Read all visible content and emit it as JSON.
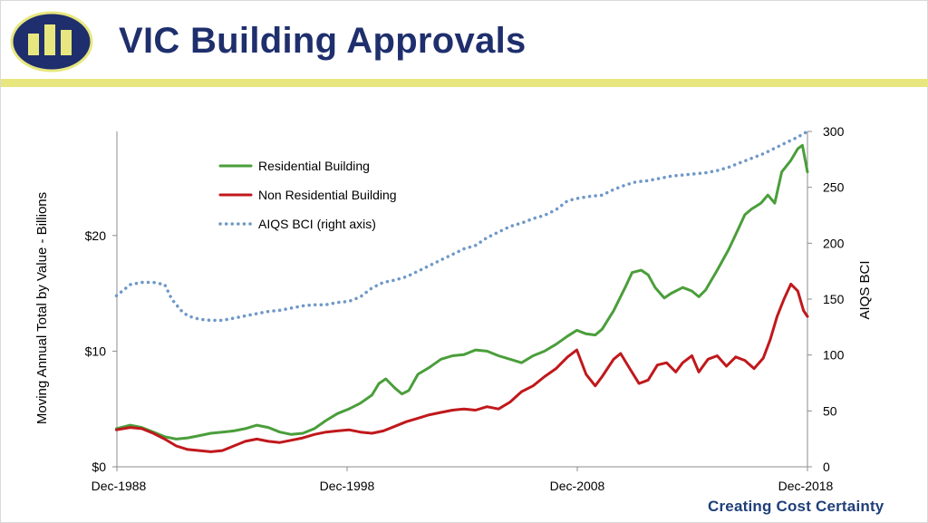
{
  "header": {
    "title": "VIC Building Approvals",
    "tagline": "Creating Cost Certainty"
  },
  "colors": {
    "title": "#1f2f6d",
    "accent_bar": "#e8e77f",
    "logo_fill": "#1f2f6d",
    "logo_mark": "#e8e77f",
    "residential": "#4a9e3a",
    "non_residential": "#c0181c",
    "bci": "#6f98c8"
  },
  "chart_data": {
    "type": "line",
    "title": "",
    "ylabel": "Moving Annual Total by Value - Billions",
    "y2label": "AIQS BCI",
    "xlim": [
      1988.92,
      2018.92
    ],
    "ylim": [
      0,
      29
    ],
    "y2lim": [
      0,
      300
    ],
    "x_ticks": [
      {
        "x": 1988.92,
        "label": "Dec-1988"
      },
      {
        "x": 1998.92,
        "label": "Dec-1998"
      },
      {
        "x": 2008.92,
        "label": "Dec-2008"
      },
      {
        "x": 2018.92,
        "label": "Dec-2018"
      }
    ],
    "y_ticks": [
      {
        "y": 0,
        "label": "$0"
      },
      {
        "y": 10,
        "label": "$10"
      },
      {
        "y": 20,
        "label": "$20"
      }
    ],
    "y2_ticks": [
      {
        "y": 0,
        "label": "0"
      },
      {
        "y": 50,
        "label": "50"
      },
      {
        "y": 100,
        "label": "100"
      },
      {
        "y": 150,
        "label": "150"
      },
      {
        "y": 200,
        "label": "200"
      },
      {
        "y": 250,
        "label": "250"
      },
      {
        "y": 300,
        "label": "300"
      }
    ],
    "legend_position": "upper-left",
    "series": [
      {
        "name": "Residential Building",
        "axis": "left",
        "style": "solid",
        "color": "#4a9e3a",
        "points": [
          [
            1988.9,
            3.3
          ],
          [
            1989.5,
            3.6
          ],
          [
            1990.0,
            3.4
          ],
          [
            1990.5,
            3.0
          ],
          [
            1991.0,
            2.6
          ],
          [
            1991.5,
            2.4
          ],
          [
            1992.0,
            2.5
          ],
          [
            1992.5,
            2.7
          ],
          [
            1993.0,
            2.9
          ],
          [
            1993.5,
            3.0
          ],
          [
            1994.0,
            3.1
          ],
          [
            1994.5,
            3.3
          ],
          [
            1995.0,
            3.6
          ],
          [
            1995.5,
            3.4
          ],
          [
            1996.0,
            3.0
          ],
          [
            1996.5,
            2.8
          ],
          [
            1997.0,
            2.9
          ],
          [
            1997.5,
            3.3
          ],
          [
            1998.0,
            4.0
          ],
          [
            1998.5,
            4.6
          ],
          [
            1999.0,
            5.0
          ],
          [
            1999.5,
            5.5
          ],
          [
            2000.0,
            6.2
          ],
          [
            2000.3,
            7.2
          ],
          [
            2000.6,
            7.6
          ],
          [
            2001.0,
            6.8
          ],
          [
            2001.3,
            6.3
          ],
          [
            2001.6,
            6.6
          ],
          [
            2002.0,
            8.0
          ],
          [
            2002.5,
            8.6
          ],
          [
            2003.0,
            9.3
          ],
          [
            2003.5,
            9.6
          ],
          [
            2004.0,
            9.7
          ],
          [
            2004.5,
            10.1
          ],
          [
            2005.0,
            10.0
          ],
          [
            2005.5,
            9.6
          ],
          [
            2006.0,
            9.3
          ],
          [
            2006.5,
            9.0
          ],
          [
            2007.0,
            9.6
          ],
          [
            2007.5,
            10.0
          ],
          [
            2008.0,
            10.6
          ],
          [
            2008.5,
            11.3
          ],
          [
            2008.9,
            11.8
          ],
          [
            2009.3,
            11.5
          ],
          [
            2009.7,
            11.4
          ],
          [
            2010.0,
            11.9
          ],
          [
            2010.5,
            13.5
          ],
          [
            2011.0,
            15.5
          ],
          [
            2011.3,
            16.8
          ],
          [
            2011.7,
            17.0
          ],
          [
            2012.0,
            16.6
          ],
          [
            2012.3,
            15.5
          ],
          [
            2012.7,
            14.6
          ],
          [
            2013.0,
            15.0
          ],
          [
            2013.5,
            15.5
          ],
          [
            2013.9,
            15.2
          ],
          [
            2014.2,
            14.7
          ],
          [
            2014.5,
            15.3
          ],
          [
            2015.0,
            17.0
          ],
          [
            2015.5,
            18.8
          ],
          [
            2015.9,
            20.5
          ],
          [
            2016.2,
            21.8
          ],
          [
            2016.5,
            22.3
          ],
          [
            2016.9,
            22.8
          ],
          [
            2017.2,
            23.5
          ],
          [
            2017.5,
            22.8
          ],
          [
            2017.8,
            25.5
          ],
          [
            2018.2,
            26.5
          ],
          [
            2018.5,
            27.5
          ],
          [
            2018.7,
            27.8
          ],
          [
            2018.92,
            25.5
          ]
        ]
      },
      {
        "name": "Non Residential Building",
        "axis": "left",
        "style": "solid",
        "color": "#c0181c",
        "points": [
          [
            1988.9,
            3.2
          ],
          [
            1989.5,
            3.4
          ],
          [
            1990.0,
            3.3
          ],
          [
            1990.5,
            2.9
          ],
          [
            1991.0,
            2.4
          ],
          [
            1991.5,
            1.8
          ],
          [
            1992.0,
            1.5
          ],
          [
            1992.5,
            1.4
          ],
          [
            1993.0,
            1.3
          ],
          [
            1993.5,
            1.4
          ],
          [
            1994.0,
            1.8
          ],
          [
            1994.5,
            2.2
          ],
          [
            1995.0,
            2.4
          ],
          [
            1995.5,
            2.2
          ],
          [
            1996.0,
            2.1
          ],
          [
            1996.5,
            2.3
          ],
          [
            1997.0,
            2.5
          ],
          [
            1997.5,
            2.8
          ],
          [
            1998.0,
            3.0
          ],
          [
            1998.5,
            3.1
          ],
          [
            1999.0,
            3.2
          ],
          [
            1999.5,
            3.0
          ],
          [
            2000.0,
            2.9
          ],
          [
            2000.5,
            3.1
          ],
          [
            2001.0,
            3.5
          ],
          [
            2001.5,
            3.9
          ],
          [
            2002.0,
            4.2
          ],
          [
            2002.5,
            4.5
          ],
          [
            2003.0,
            4.7
          ],
          [
            2003.5,
            4.9
          ],
          [
            2004.0,
            5.0
          ],
          [
            2004.5,
            4.9
          ],
          [
            2005.0,
            5.2
          ],
          [
            2005.5,
            5.0
          ],
          [
            2006.0,
            5.6
          ],
          [
            2006.5,
            6.5
          ],
          [
            2007.0,
            7.0
          ],
          [
            2007.5,
            7.8
          ],
          [
            2008.0,
            8.5
          ],
          [
            2008.5,
            9.5
          ],
          [
            2008.9,
            10.1
          ],
          [
            2009.3,
            8.0
          ],
          [
            2009.7,
            7.0
          ],
          [
            2010.0,
            7.8
          ],
          [
            2010.5,
            9.3
          ],
          [
            2010.8,
            9.8
          ],
          [
            2011.2,
            8.5
          ],
          [
            2011.6,
            7.2
          ],
          [
            2012.0,
            7.5
          ],
          [
            2012.4,
            8.8
          ],
          [
            2012.8,
            9.0
          ],
          [
            2013.2,
            8.2
          ],
          [
            2013.5,
            9.0
          ],
          [
            2013.9,
            9.6
          ],
          [
            2014.2,
            8.2
          ],
          [
            2014.6,
            9.3
          ],
          [
            2015.0,
            9.6
          ],
          [
            2015.4,
            8.7
          ],
          [
            2015.8,
            9.5
          ],
          [
            2016.2,
            9.2
          ],
          [
            2016.6,
            8.5
          ],
          [
            2017.0,
            9.4
          ],
          [
            2017.3,
            11.0
          ],
          [
            2017.6,
            13.0
          ],
          [
            2017.9,
            14.5
          ],
          [
            2018.2,
            15.8
          ],
          [
            2018.5,
            15.2
          ],
          [
            2018.75,
            13.5
          ],
          [
            2018.92,
            13.0
          ]
        ]
      },
      {
        "name": "AIQS BCI (right axis)",
        "axis": "right",
        "style": "dotted",
        "color": "#6f98c8",
        "points": [
          [
            1988.9,
            153
          ],
          [
            1989.5,
            163
          ],
          [
            1990.0,
            165
          ],
          [
            1990.5,
            165
          ],
          [
            1991.0,
            163
          ],
          [
            1991.3,
            150
          ],
          [
            1991.7,
            140
          ],
          [
            1992.0,
            135
          ],
          [
            1992.5,
            132
          ],
          [
            1993.0,
            131
          ],
          [
            1993.5,
            131
          ],
          [
            1994.0,
            133
          ],
          [
            1994.5,
            135
          ],
          [
            1995.0,
            137
          ],
          [
            1995.5,
            139
          ],
          [
            1996.0,
            140
          ],
          [
            1996.5,
            142
          ],
          [
            1997.0,
            144
          ],
          [
            1997.5,
            145
          ],
          [
            1998.0,
            145
          ],
          [
            1998.5,
            147
          ],
          [
            1999.0,
            148
          ],
          [
            1999.5,
            152
          ],
          [
            2000.0,
            160
          ],
          [
            2000.5,
            165
          ],
          [
            2001.0,
            167
          ],
          [
            2001.5,
            170
          ],
          [
            2002.0,
            175
          ],
          [
            2002.5,
            180
          ],
          [
            2003.0,
            185
          ],
          [
            2003.5,
            190
          ],
          [
            2004.0,
            195
          ],
          [
            2004.5,
            198
          ],
          [
            2005.0,
            205
          ],
          [
            2005.5,
            210
          ],
          [
            2006.0,
            215
          ],
          [
            2006.5,
            218
          ],
          [
            2007.0,
            222
          ],
          [
            2007.5,
            225
          ],
          [
            2008.0,
            230
          ],
          [
            2008.5,
            238
          ],
          [
            2008.9,
            240
          ],
          [
            2009.5,
            242
          ],
          [
            2010.0,
            243
          ],
          [
            2010.5,
            248
          ],
          [
            2011.0,
            252
          ],
          [
            2011.5,
            255
          ],
          [
            2012.0,
            256
          ],
          [
            2012.5,
            258
          ],
          [
            2013.0,
            260
          ],
          [
            2013.5,
            261
          ],
          [
            2014.0,
            262
          ],
          [
            2014.5,
            263
          ],
          [
            2015.0,
            265
          ],
          [
            2015.5,
            268
          ],
          [
            2016.0,
            272
          ],
          [
            2016.5,
            276
          ],
          [
            2017.0,
            280
          ],
          [
            2017.5,
            285
          ],
          [
            2018.0,
            290
          ],
          [
            2018.5,
            295
          ],
          [
            2018.92,
            300
          ]
        ]
      }
    ]
  }
}
